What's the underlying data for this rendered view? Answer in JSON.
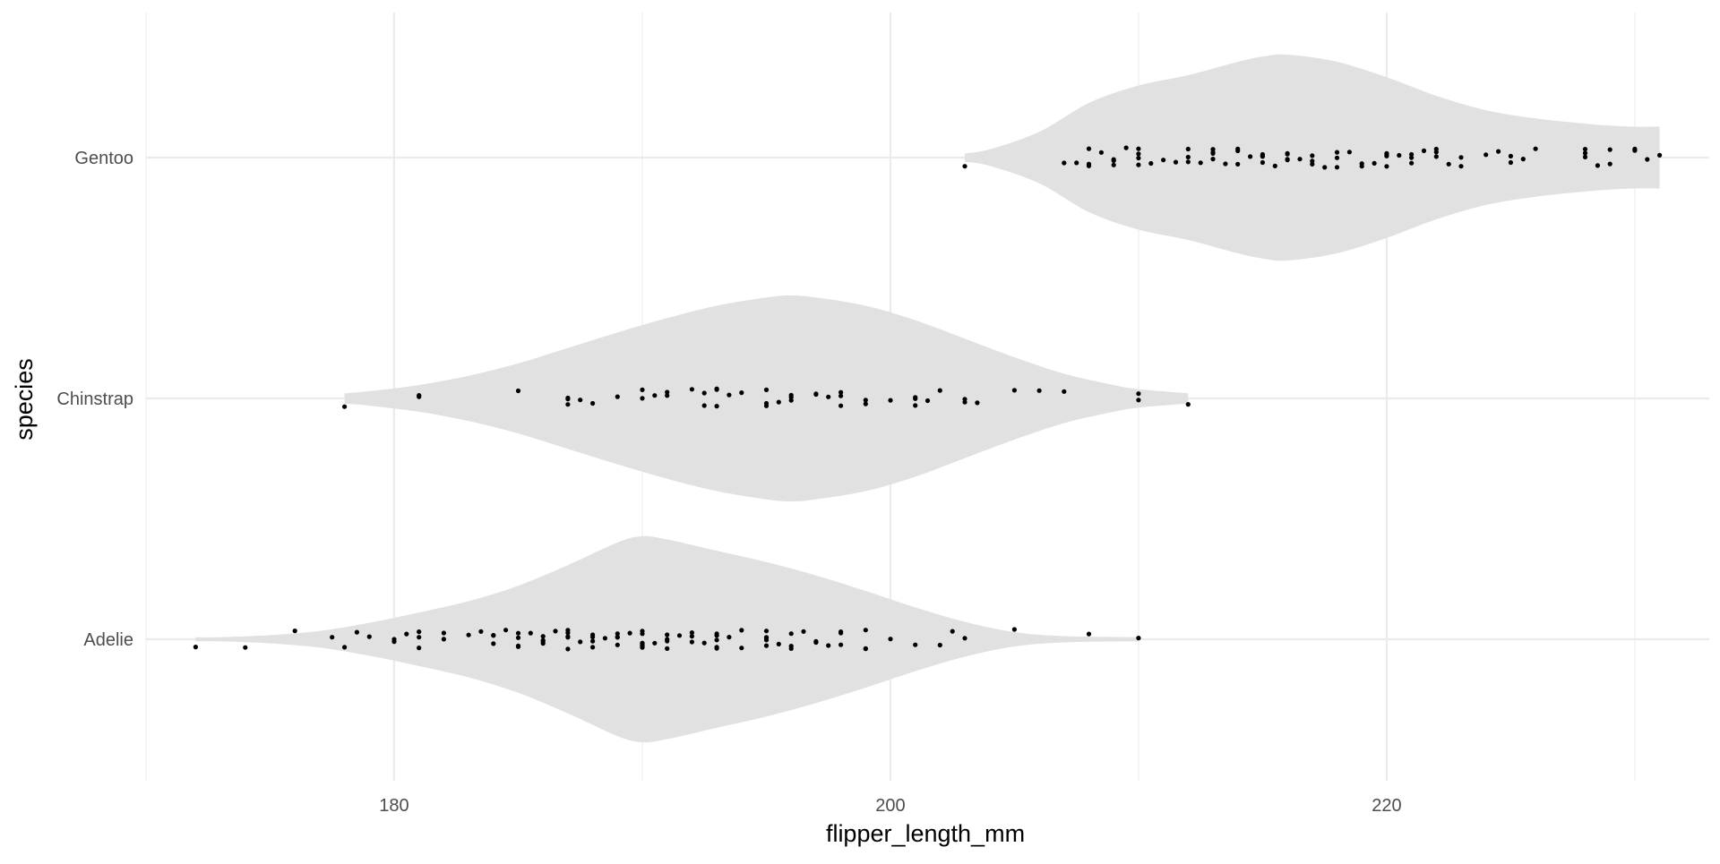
{
  "chart_data": {
    "type": "violin",
    "title": "",
    "xlabel": "flipper_length_mm",
    "ylabel": "species",
    "xlim": [
      170,
      233
    ],
    "xticks": [
      180,
      200,
      220
    ],
    "categories": [
      "Adelie",
      "Chinstrap",
      "Gentoo"
    ],
    "grid": true,
    "violins": [
      {
        "category": "Adelie",
        "min": 172,
        "max": 210,
        "density": [
          [
            172,
            0.02
          ],
          [
            173,
            0.02
          ],
          [
            175,
            0.04
          ],
          [
            177,
            0.08
          ],
          [
            179,
            0.16
          ],
          [
            181,
            0.26
          ],
          [
            183,
            0.37
          ],
          [
            185,
            0.52
          ],
          [
            187,
            0.72
          ],
          [
            189,
            0.94
          ],
          [
            190,
            1.0
          ],
          [
            191,
            0.97
          ],
          [
            193,
            0.86
          ],
          [
            195,
            0.75
          ],
          [
            197,
            0.62
          ],
          [
            199,
            0.47
          ],
          [
            201,
            0.31
          ],
          [
            203,
            0.17
          ],
          [
            205,
            0.07
          ],
          [
            207,
            0.03
          ],
          [
            210,
            0.02
          ]
        ],
        "points": [
          172,
          174,
          176,
          177.5,
          178,
          178.5,
          179,
          180,
          180,
          180.5,
          181,
          181,
          181,
          182,
          182,
          183,
          183.5,
          184,
          184,
          184,
          184.5,
          185,
          185,
          185,
          185,
          185.5,
          186,
          186,
          186,
          186,
          186.5,
          187,
          187,
          187,
          187,
          187,
          187.5,
          188,
          188,
          188,
          188,
          188.5,
          189,
          189,
          189,
          189,
          189,
          189.5,
          190,
          190,
          190,
          190,
          190,
          190,
          190,
          190,
          190.5,
          191,
          191,
          191,
          191,
          191.5,
          192,
          192,
          192,
          192.5,
          193,
          193,
          193,
          193,
          193,
          193.5,
          194,
          194,
          195,
          195,
          195,
          195,
          195,
          195.5,
          196,
          196,
          196,
          196.5,
          197,
          197,
          197,
          197.5,
          198,
          198,
          198,
          199,
          199,
          199,
          200,
          201,
          202,
          202.5,
          203,
          205,
          208,
          210
        ]
      },
      {
        "category": "Chinstrap",
        "min": 178,
        "max": 212,
        "density": [
          [
            178,
            0.05
          ],
          [
            179,
            0.07
          ],
          [
            181,
            0.13
          ],
          [
            183,
            0.22
          ],
          [
            185,
            0.34
          ],
          [
            187,
            0.49
          ],
          [
            189,
            0.64
          ],
          [
            191,
            0.78
          ],
          [
            193,
            0.9
          ],
          [
            195,
            0.98
          ],
          [
            196,
            1.0
          ],
          [
            197,
            0.98
          ],
          [
            199,
            0.9
          ],
          [
            201,
            0.76
          ],
          [
            203,
            0.58
          ],
          [
            205,
            0.4
          ],
          [
            207,
            0.24
          ],
          [
            209,
            0.13
          ],
          [
            210,
            0.09
          ],
          [
            212,
            0.05
          ]
        ],
        "points": [
          178,
          181,
          181,
          185,
          187,
          187,
          187,
          187.5,
          188,
          189,
          190,
          190,
          190.5,
          191,
          191,
          192,
          192.5,
          192.5,
          193,
          193,
          193,
          193.5,
          194,
          195,
          195,
          195,
          195.5,
          196,
          196,
          196,
          197,
          197,
          197.5,
          198,
          198,
          198,
          199,
          199,
          200,
          201,
          201,
          201,
          201.5,
          202,
          203,
          203,
          203.5,
          205,
          206,
          207,
          210,
          210,
          212
        ]
      },
      {
        "category": "Gentoo",
        "min": 203,
        "max": 231,
        "density": [
          [
            203,
            0.04
          ],
          [
            204,
            0.08
          ],
          [
            206,
            0.25
          ],
          [
            208,
            0.53
          ],
          [
            210,
            0.7
          ],
          [
            212,
            0.8
          ],
          [
            214,
            0.93
          ],
          [
            215,
            0.98
          ],
          [
            216,
            1.0
          ],
          [
            218,
            0.93
          ],
          [
            220,
            0.78
          ],
          [
            222,
            0.6
          ],
          [
            224,
            0.46
          ],
          [
            226,
            0.38
          ],
          [
            228,
            0.33
          ],
          [
            229,
            0.31
          ],
          [
            230,
            0.3
          ],
          [
            231,
            0.3
          ]
        ],
        "points": [
          203,
          207,
          207.5,
          208,
          208,
          208,
          208.5,
          209,
          209,
          209,
          209.5,
          210,
          210,
          210,
          210,
          210.5,
          211,
          211.5,
          212,
          212,
          212,
          212.5,
          213,
          213,
          213,
          213,
          213.5,
          214,
          214,
          214,
          214.5,
          215,
          215,
          215,
          215,
          215,
          215.5,
          216,
          216,
          216,
          216,
          216.5,
          217,
          217,
          217,
          217.5,
          218,
          218,
          218,
          218.5,
          219,
          219,
          219.5,
          220,
          220,
          220,
          220,
          220.5,
          221,
          221,
          221,
          221.5,
          222,
          222,
          222,
          222.5,
          223,
          223,
          224,
          224.5,
          225,
          225,
          225.5,
          226,
          228,
          228,
          228,
          228.5,
          229,
          229,
          230,
          230,
          230,
          230.5,
          231
        ]
      }
    ]
  },
  "colors": {
    "violin_fill": "#E1E1E1",
    "point": "#000000",
    "grid_major": "#EBEBEB",
    "grid_minor": "#F3F3F3",
    "tick_text": "#4D4D4D",
    "axis_title": "#000000",
    "background": "#FFFFFF"
  }
}
